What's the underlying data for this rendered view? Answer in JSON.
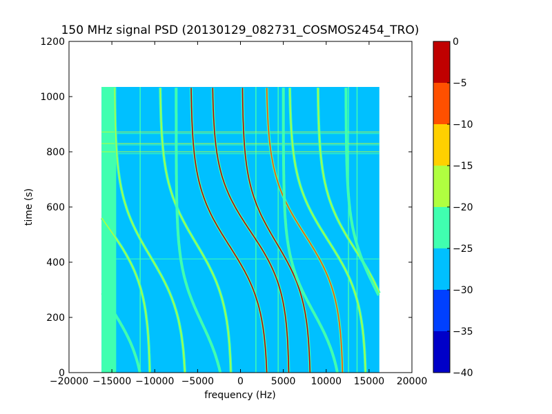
{
  "chart_data": {
    "type": "heatmap",
    "title": "150 MHz signal PSD (20130129_082731_COSMOS2454_TRO)",
    "xlabel": "frequency (Hz)",
    "ylabel": "time (s)",
    "xlim": [
      -20000,
      20000
    ],
    "ylim": [
      0,
      1200
    ],
    "x_ticks": [
      -20000,
      -15000,
      -10000,
      -5000,
      0,
      5000,
      10000,
      15000,
      20000
    ],
    "x_tick_labels": [
      "−20000",
      "−15000",
      "−10000",
      "−5000",
      "0",
      "5000",
      "10000",
      "15000",
      "20000"
    ],
    "y_ticks": [
      0,
      200,
      400,
      600,
      800,
      1000,
      1200
    ],
    "y_tick_labels": [
      "0",
      "200",
      "400",
      "600",
      "800",
      "1000",
      "1200"
    ],
    "data_extent": {
      "x": [
        -16200,
        16200
      ],
      "y": [
        0,
        1035
      ]
    },
    "background_level_db": -28,
    "edge_band": {
      "x": [
        -16200,
        -14500
      ],
      "level_db": -23
    },
    "horizontal_lines": [
      {
        "y": 872,
        "level_db": -18
      },
      {
        "y": 866,
        "level_db": -21
      },
      {
        "y": 830,
        "level_db": -18
      },
      {
        "y": 825,
        "level_db": -21
      },
      {
        "y": 800,
        "level_db": -20
      },
      {
        "y": 793,
        "level_db": -22
      },
      {
        "y": 412,
        "level_db": -21
      }
    ],
    "vertical_lines": [
      {
        "x": -11700,
        "level_db": -22
      },
      {
        "x": 1800,
        "level_db": -21
      },
      {
        "x": 4400,
        "level_db": -21
      },
      {
        "x": 12600,
        "level_db": -22
      },
      {
        "x": 13600,
        "level_db": -22
      }
    ],
    "tracks": [
      {
        "x_center": -15500,
        "y_center": 530,
        "amplitude": 5000,
        "time_scale": 220,
        "peak_db": -19
      },
      {
        "x_center": -15000,
        "y_center": 230,
        "amplitude": 4000,
        "time_scale": 200,
        "peak_db": -21
      },
      {
        "x_center": -10500,
        "y_center": 420,
        "amplitude": 4200,
        "time_scale": 220,
        "peak_db": -18
      },
      {
        "x_center": -5200,
        "y_center": 470,
        "amplitude": 4200,
        "time_scale": 220,
        "peak_db": -18
      },
      {
        "x_center": -4500,
        "y_center": 180,
        "amplitude": 3000,
        "time_scale": 200,
        "peak_db": -21
      },
      {
        "x_center": -1300,
        "y_center": 460,
        "amplitude": 4500,
        "time_scale": 220,
        "peak_db": -4
      },
      {
        "x_center": 1200,
        "y_center": 510,
        "amplitude": 4500,
        "time_scale": 210,
        "peak_db": -4
      },
      {
        "x_center": 4200,
        "y_center": 470,
        "amplitude": 4000,
        "time_scale": 210,
        "peak_db": -4
      },
      {
        "x_center": 7500,
        "y_center": 500,
        "amplitude": 4500,
        "time_scale": 220,
        "peak_db": -6
      },
      {
        "x_center": 10200,
        "y_center": 480,
        "amplitude": 4500,
        "time_scale": 220,
        "peak_db": -16
      },
      {
        "x_center": 13500,
        "y_center": 440,
        "amplitude": 4500,
        "time_scale": 220,
        "peak_db": -17
      },
      {
        "x_center": 8500,
        "y_center": 220,
        "amplitude": 3500,
        "time_scale": 200,
        "peak_db": -21
      },
      {
        "x_center": 15800,
        "y_center": 300,
        "amplitude": 3500,
        "time_scale": 220,
        "peak_db": -21
      }
    ],
    "colorbar": {
      "range": [
        -40,
        0
      ],
      "ticks": [
        0,
        -5,
        -10,
        -15,
        -20,
        -25,
        -30,
        -35,
        -40
      ],
      "tick_labels": [
        "0",
        "−5",
        "−10",
        "−15",
        "−20",
        "−25",
        "−30",
        "−35",
        "−40"
      ],
      "levels": [
        {
          "from": -40,
          "to": -35,
          "color": "#0000c8"
        },
        {
          "from": -35,
          "to": -30,
          "color": "#0040ff"
        },
        {
          "from": -30,
          "to": -25,
          "color": "#00c0ff"
        },
        {
          "from": -25,
          "to": -20,
          "color": "#40ffb0"
        },
        {
          "from": -20,
          "to": -15,
          "color": "#b0ff40"
        },
        {
          "from": -15,
          "to": -10,
          "color": "#ffd000"
        },
        {
          "from": -10,
          "to": -5,
          "color": "#ff5000"
        },
        {
          "from": -5,
          "to": 0,
          "color": "#c00000"
        }
      ]
    },
    "grid": false
  }
}
